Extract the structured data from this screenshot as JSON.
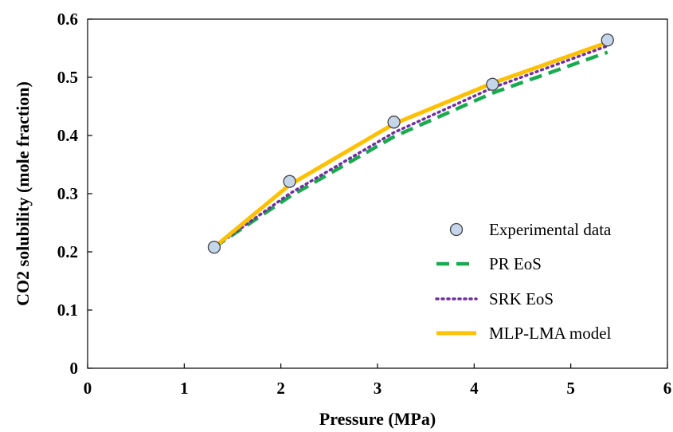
{
  "chart_data": {
    "type": "line",
    "title": "",
    "xlabel": "Pressure (MPa)",
    "ylabel": "CO2 solubility (mole fraction)",
    "xlim": [
      0,
      6
    ],
    "ylim": [
      0,
      0.6
    ],
    "xticks": [
      "0",
      "1",
      "2",
      "3",
      "4",
      "5",
      "6"
    ],
    "yticks": [
      "0",
      "0.1",
      "0.2",
      "0.3",
      "0.4",
      "0.5",
      "0.6"
    ],
    "grid": false,
    "legend_position": "bottom-right",
    "series": [
      {
        "name": "Experimental data",
        "style": "markers",
        "color": "#c5d5ea",
        "edge_color": "#404040",
        "x": [
          1.31,
          2.09,
          3.17,
          4.19,
          5.38
        ],
        "y": [
          0.208,
          0.321,
          0.423,
          0.488,
          0.564
        ]
      },
      {
        "name": "PR EoS",
        "style": "dashed",
        "color": "#1aaa4e",
        "x": [
          1.31,
          2.09,
          3.17,
          4.19,
          5.38
        ],
        "y": [
          0.208,
          0.295,
          0.398,
          0.473,
          0.543
        ]
      },
      {
        "name": "SRK EoS",
        "style": "dotted",
        "color": "#7030a0",
        "x": [
          1.31,
          2.09,
          3.17,
          4.19,
          5.38
        ],
        "y": [
          0.208,
          0.3,
          0.405,
          0.482,
          0.554
        ]
      },
      {
        "name": "MLP-LMA model",
        "style": "solid",
        "color": "#ffc000",
        "x": [
          1.31,
          2.09,
          3.17,
          4.19,
          5.38
        ],
        "y": [
          0.208,
          0.315,
          0.42,
          0.49,
          0.56
        ]
      }
    ]
  }
}
